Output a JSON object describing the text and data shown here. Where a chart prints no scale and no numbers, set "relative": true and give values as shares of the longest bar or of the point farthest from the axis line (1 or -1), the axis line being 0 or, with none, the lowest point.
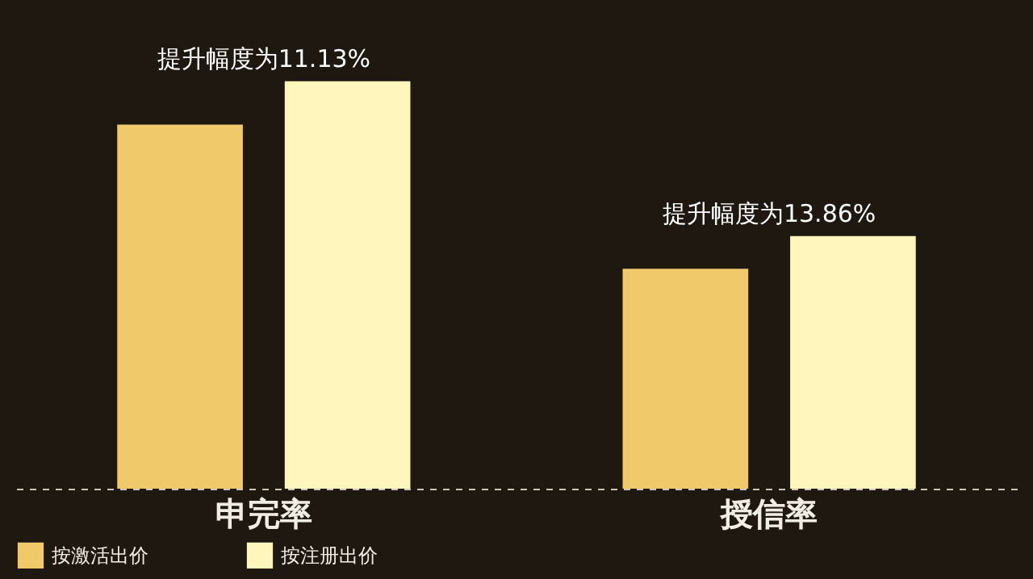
{
  "chart_data": {
    "type": "bar",
    "relative": true,
    "categories": [
      "申完率",
      "授信率"
    ],
    "series": [
      {
        "name": "按激活出价",
        "color": "#f0c96a",
        "values": [
          0.894,
          0.54
        ]
      },
      {
        "name": "按注册出价",
        "color": "#fff6bd",
        "values": [
          1,
          0.62
        ]
      }
    ],
    "annotations": [
      "提升幅度为11.13%",
      "提升幅度为13.86%"
    ],
    "legend": "bottom"
  }
}
